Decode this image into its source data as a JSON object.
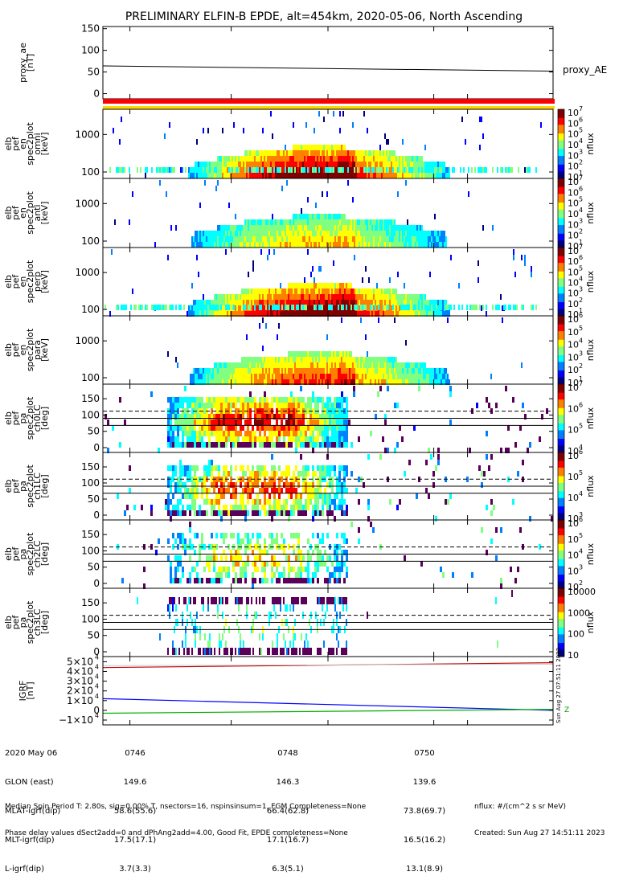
{
  "title": "PRELIMINARY ELFIN-B EPDE, alt=454km, 2020-05-06, North Ascending",
  "chart_data": [
    {
      "type": "line",
      "panel": "proxy_ae",
      "ylabel": [
        "proxy_ae",
        "[nT]"
      ],
      "yticks": [
        "150",
        "100",
        "50",
        "0"
      ],
      "ylim": [
        -12,
        155
      ],
      "legend": [
        "proxy_AE"
      ],
      "series": [
        {
          "name": "proxy_AE",
          "x": [
            0.0,
            1.0
          ],
          "y": [
            64,
            52
          ]
        }
      ]
    },
    {
      "type": "heatmap",
      "panel": "elb pef en spec2plot omni",
      "ylabel": [
        "elb",
        "pef",
        "en",
        "spec2plot",
        "omni",
        "[keV]"
      ],
      "yticks": [
        "1000",
        "100"
      ],
      "scale": "log",
      "zlabel": "nflux",
      "zticks": [
        "10",
        "10",
        "10",
        "10",
        "10",
        "10",
        "10"
      ],
      "zexp": [
        "7",
        "6",
        "5",
        "4",
        "3",
        "2",
        "1"
      ],
      "peak_flux": "10^7"
    },
    {
      "type": "heatmap",
      "panel": "elb pef en spec2plot anti",
      "ylabel": [
        "elb",
        "pef",
        "en",
        "spec2plot",
        "anti",
        "[keV]"
      ],
      "yticks": [
        "1000",
        "100"
      ],
      "scale": "log",
      "zlabel": "nflux",
      "zticks": [
        "10",
        "10",
        "10",
        "10",
        "10",
        "10",
        "10"
      ],
      "zexp": [
        "7",
        "6",
        "5",
        "4",
        "3",
        "2",
        "1"
      ]
    },
    {
      "type": "heatmap",
      "panel": "elb pef en spec2plot perp",
      "ylabel": [
        "elb",
        "pef",
        "en",
        "spec2plot",
        "perp",
        "[keV]"
      ],
      "yticks": [
        "1000",
        "100"
      ],
      "scale": "log",
      "zlabel": "nflux",
      "zticks": [
        "10",
        "10",
        "10",
        "10",
        "10",
        "10",
        "10"
      ],
      "zexp": [
        "7",
        "6",
        "5",
        "4",
        "3",
        "2",
        "1"
      ]
    },
    {
      "type": "heatmap",
      "panel": "elb pef en spec2plot para",
      "ylabel": [
        "elb",
        "pef",
        "en",
        "spec2plot",
        "para",
        "[keV]"
      ],
      "yticks": [
        "1000",
        "100"
      ],
      "scale": "log",
      "zlabel": "nflux",
      "zticks": [
        "10",
        "10",
        "10",
        "10",
        "10",
        "10"
      ],
      "zexp": [
        "6",
        "5",
        "4",
        "3",
        "2",
        "1"
      ]
    },
    {
      "type": "heatmap",
      "panel": "elb pef pa spec2plot ch0LC",
      "ylabel": [
        "elb",
        "pef",
        "pa",
        "spec2plot",
        "ch0LC",
        "[deg]"
      ],
      "yticks": [
        "150",
        "100",
        "50",
        "0"
      ],
      "ylim": [
        0,
        180
      ],
      "zlabel": "nflux",
      "zticks": [
        "10",
        "10",
        "10",
        "10"
      ],
      "zexp": [
        "7",
        "6",
        "5",
        "4"
      ]
    },
    {
      "type": "heatmap",
      "panel": "elb pef pa spec2plot ch1LC",
      "ylabel": [
        "elb",
        "pef",
        "pa",
        "spec2plot",
        "ch1LC",
        "[deg]"
      ],
      "yticks": [
        "150",
        "100",
        "50",
        "0"
      ],
      "ylim": [
        0,
        180
      ],
      "zlabel": "nflux",
      "zticks": [
        "10",
        "10",
        "10",
        "10"
      ],
      "zexp": [
        "6",
        "5",
        "4",
        "3"
      ]
    },
    {
      "type": "heatmap",
      "panel": "elb pef pa spec2plot ch2LC",
      "ylabel": [
        "elb",
        "pef",
        "pa",
        "spec2plot",
        "ch2LC",
        "[deg]"
      ],
      "yticks": [
        "150",
        "100",
        "50",
        "0"
      ],
      "ylim": [
        0,
        180
      ],
      "zlabel": "nflux",
      "zticks": [
        "10",
        "10",
        "10",
        "10",
        "10"
      ],
      "zexp": [
        "6",
        "5",
        "4",
        "3",
        "2"
      ]
    },
    {
      "type": "heatmap",
      "panel": "elb pef pa spec2plot ch3LC",
      "ylabel": [
        "elb",
        "pef",
        "pa",
        "spec2plot",
        "ch3LC",
        "[deg]"
      ],
      "yticks": [
        "150",
        "100",
        "50",
        "0"
      ],
      "ylim": [
        0,
        180
      ],
      "zlabel": "nflux",
      "zticks": [
        "10000",
        "1000",
        "100",
        "10"
      ]
    },
    {
      "type": "line",
      "panel": "IGRF",
      "ylabel": [
        "IGRF",
        "[nT]"
      ],
      "yticks": [
        "5×10",
        "4×10",
        "3×10",
        "2×10",
        "1×10",
        "0",
        "−1×10"
      ],
      "yexp": "4",
      "ylim": [
        -10000,
        52000
      ],
      "series": [
        {
          "name": "red",
          "x": [
            0.0,
            1.0
          ],
          "y": [
            44000,
            49000
          ]
        },
        {
          "name": "blue",
          "x": [
            0.0,
            1.0
          ],
          "y": [
            12000,
            0
          ]
        },
        {
          "name": "green",
          "x": [
            0.0,
            1.0
          ],
          "y": [
            -3000,
            1000
          ]
        }
      ],
      "side_labels": [
        "Sun Aug 27 07:51:11 2023",
        "Z"
      ]
    }
  ],
  "xticks": [
    "0746",
    "0748",
    "0750"
  ],
  "ephem": {
    "labels": [
      "2020 May 06",
      "GLON (east)",
      "MLAT-igrf(dip)",
      "MLT-igrf(dip)",
      "L-igrf(dip)"
    ],
    "col1": [
      "0746",
      "149.6",
      "58.6(55.6)",
      "17.5(17.1)",
      "3.7(3.3)"
    ],
    "col2": [
      "0748",
      "146.3",
      "66.4(62.8)",
      "17.1(16.7)",
      "6.3(5.1)"
    ],
    "col3": [
      "0750",
      "139.6",
      "73.8(69.7)",
      "16.5(16.2)",
      "13.1(8.9)"
    ]
  },
  "footer": {
    "line1": "Median Spin Period T: 2.80s, sig=0.00% T, nsectors=16, nspinsinsum=1, FGM Completeness=None",
    "line2": "Phase delay values dSect2add=0 and dPhAng2add=4.00, Good Fit, EPDE completeness=None",
    "unit": "nflux: #/(cm^2 s sr MeV)",
    "created": "Created: Sun Aug 27 14:51:11 2023"
  }
}
